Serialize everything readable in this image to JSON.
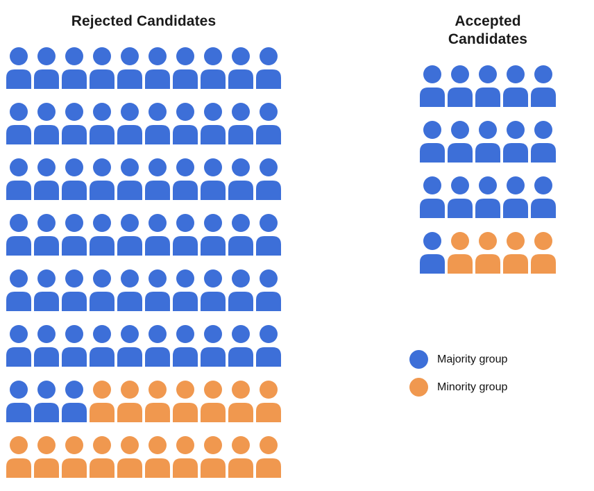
{
  "colors": {
    "majority": "#3D6FD8",
    "minority": "#F0984F",
    "title_text": "#1b1b1b",
    "legend_text": "#111111",
    "background": "#ffffff"
  },
  "chart_data": {
    "type": "pictogram",
    "description": "Waffle / pictogram chart of candidates; one person icon = one candidate",
    "color_map": {
      "M": "#3D6FD8",
      "N": "#F0984F"
    },
    "groups": [
      {
        "title": "Rejected Candidates",
        "columns": 10,
        "rows": [
          "MMMMMMMMMM",
          "MMMMMMMMMM",
          "MMMMMMMMMM",
          "MMMMMMMMMM",
          "MMMMMMMMMM",
          "MMMMMMMMMM",
          "MMMNNNNNNN",
          "NNNNNNNNNN"
        ],
        "counts": {
          "majority": 63,
          "minority": 17,
          "total": 80
        }
      },
      {
        "title": "Accepted Candidates",
        "columns": 5,
        "rows": [
          "MMMMM",
          "MMMMM",
          "MMMMM",
          "MNNNN"
        ],
        "counts": {
          "majority": 16,
          "minority": 4,
          "total": 20
        }
      }
    ],
    "legend": [
      {
        "label": "Majority group",
        "color": "#3D6FD8",
        "symbol": "circle"
      },
      {
        "label": "Minority group",
        "color": "#F0984F",
        "symbol": "circle"
      }
    ],
    "legend_position": "right-middle"
  }
}
